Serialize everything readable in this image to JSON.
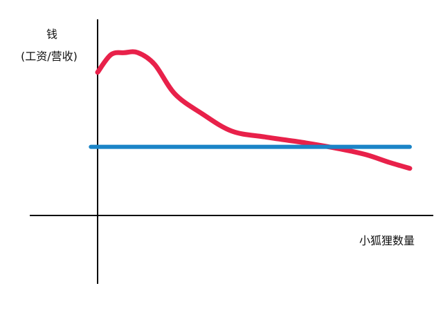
{
  "chart_data": {
    "type": "line",
    "title": "",
    "ylabel_lines": [
      "钱",
      "(工资/营收)"
    ],
    "xlabel": "小狐狸数量",
    "x_ticks": false,
    "y_ticks": false,
    "grid": false,
    "legend": "none",
    "series": [
      {
        "style": "freehand-curve",
        "color": "#e8214a",
        "points": [
          [
            0.0,
            0.73
          ],
          [
            0.04,
            0.82
          ],
          [
            0.08,
            0.83
          ],
          [
            0.12,
            0.83
          ],
          [
            0.17,
            0.77
          ],
          [
            0.23,
            0.62
          ],
          [
            0.31,
            0.52
          ],
          [
            0.4,
            0.43
          ],
          [
            0.5,
            0.4
          ],
          [
            0.62,
            0.37
          ],
          [
            0.72,
            0.34
          ],
          [
            0.8,
            0.31
          ],
          [
            0.87,
            0.27
          ],
          [
            0.93,
            0.24
          ]
        ]
      },
      {
        "style": "straight-line",
        "color": "#1a84c7",
        "points": [
          [
            -0.02,
            0.35
          ],
          [
            0.93,
            0.35
          ]
        ]
      }
    ]
  }
}
